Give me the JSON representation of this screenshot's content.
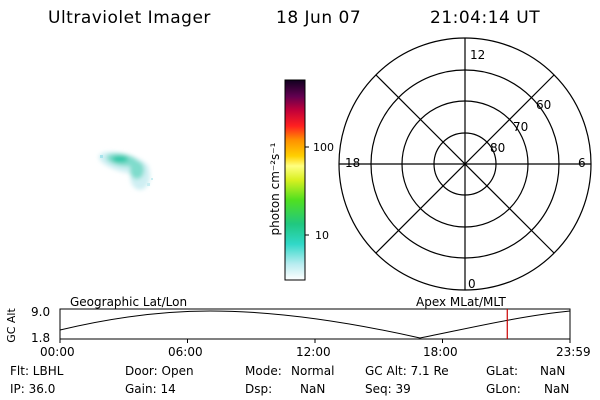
{
  "header": {
    "instrument": "Ultraviolet Imager",
    "date": "18 Jun 07",
    "time": "21:04:14 UT"
  },
  "colorbar": {
    "label": "photon cm⁻²s⁻¹",
    "tick_100": "100",
    "tick_10": "10"
  },
  "polar": {
    "mlt_12": "12",
    "mlt_18": "18",
    "mlt_6": "6",
    "mlt_0": "0",
    "lat_60": "60",
    "lat_70": "70",
    "lat_80": "80"
  },
  "timeline": {
    "left_label": "Geographic Lat/Lon",
    "right_label": "Apex  MLat/MLT",
    "axis_label": "GC Alt",
    "y_max": "9.0",
    "y_min": "1.8",
    "ticks": [
      "00:00",
      "06:00",
      "12:00",
      "18:00",
      "23:59"
    ],
    "marker_time_fraction": 0.877
  },
  "info": {
    "flt": "Flt: LBHL",
    "ip": "IP: 36.0",
    "door": "Door: Open",
    "gain": "Gain: 14",
    "mode_label": "Mode:",
    "mode_value": "Normal",
    "dsp_label": "Dsp:",
    "dsp_value": "NaN",
    "gcalt": "GC Alt: 7.1 Re",
    "seq": "Seq: 39",
    "glat_label": "GLat:",
    "glat_value": "NaN",
    "glon_label": "GLon:",
    "glon_value": "NaN"
  },
  "colors": {
    "marker": "#cc0000"
  }
}
